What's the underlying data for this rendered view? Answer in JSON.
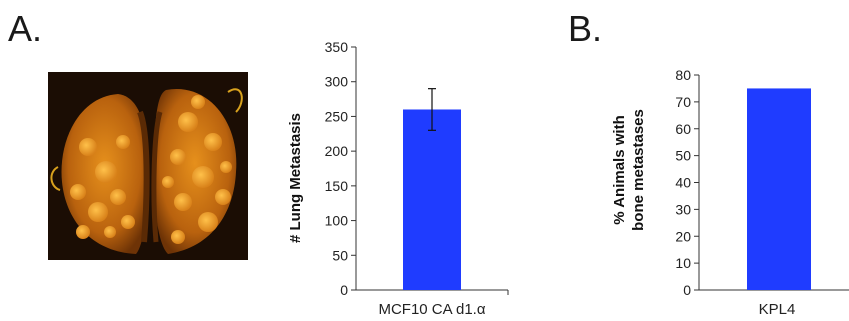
{
  "panels": {
    "a": "A.",
    "b": "B."
  },
  "colors": {
    "bar": "#1f3cff",
    "axis": "#333333"
  },
  "chart_data": [
    {
      "type": "bar",
      "categories": [
        "MCF10 CA d1.α"
      ],
      "values": [
        260
      ],
      "error": [
        30
      ],
      "ylabel": "# Lung Metastasis",
      "ylim": [
        0,
        350
      ],
      "ticks": [
        0,
        50,
        100,
        150,
        200,
        250,
        300,
        350
      ]
    },
    {
      "type": "bar",
      "categories": [
        "KPL4"
      ],
      "values": [
        75
      ],
      "ylabel_lines": [
        "% Animals with",
        "bone metastases"
      ],
      "ylim": [
        0,
        80
      ],
      "ticks": [
        0,
        10,
        20,
        30,
        40,
        50,
        60,
        70,
        80
      ]
    }
  ]
}
